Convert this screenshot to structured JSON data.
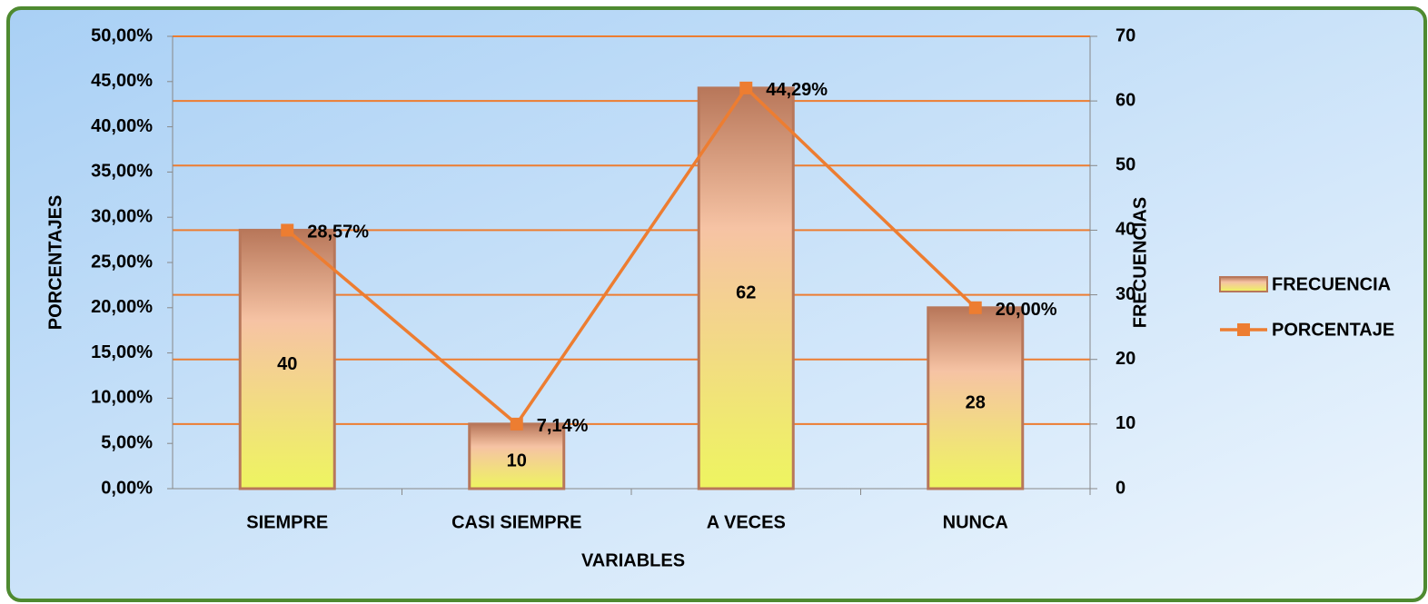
{
  "chart_data": {
    "type": "bar",
    "categories": [
      "SIEMPRE",
      "CASI SIEMPRE",
      "A VECES",
      "NUNCA"
    ],
    "series": [
      {
        "name": "FRECUENCIA",
        "type": "bar",
        "axis": "y2",
        "color": "#b8775a",
        "values": [
          40,
          10,
          62,
          28
        ]
      },
      {
        "name": "PORCENTAJE",
        "type": "line",
        "axis": "y",
        "color": "#ed7d31",
        "values": [
          28.57,
          7.14,
          44.29,
          20.0
        ],
        "value_labels": [
          "28,57%",
          "7,14%",
          "44,29%",
          "20,00%"
        ]
      }
    ],
    "ylabel": "PORCENTAJES",
    "y2label": "FRECUENCIAS",
    "xlabel": "VARIABLES",
    "ylim": [
      0,
      50
    ],
    "yticks": [
      {
        "value": 0,
        "label": "0,00%"
      },
      {
        "value": 5,
        "label": "5,00%"
      },
      {
        "value": 10,
        "label": "10,00%"
      },
      {
        "value": 15,
        "label": "15,00%"
      },
      {
        "value": 20,
        "label": "20,00%"
      },
      {
        "value": 25,
        "label": "25,00%"
      },
      {
        "value": 30,
        "label": "30,00%"
      },
      {
        "value": 35,
        "label": "35,00%"
      },
      {
        "value": 40,
        "label": "40,00%"
      },
      {
        "value": 45,
        "label": "45,00%"
      },
      {
        "value": 50,
        "label": "50,00%"
      }
    ],
    "y2lim": [
      0,
      70
    ],
    "y2ticks": [
      0,
      10,
      20,
      30,
      40,
      50,
      60,
      70
    ],
    "grid": true,
    "grid_color": "#ed7d31",
    "legend": "right"
  }
}
